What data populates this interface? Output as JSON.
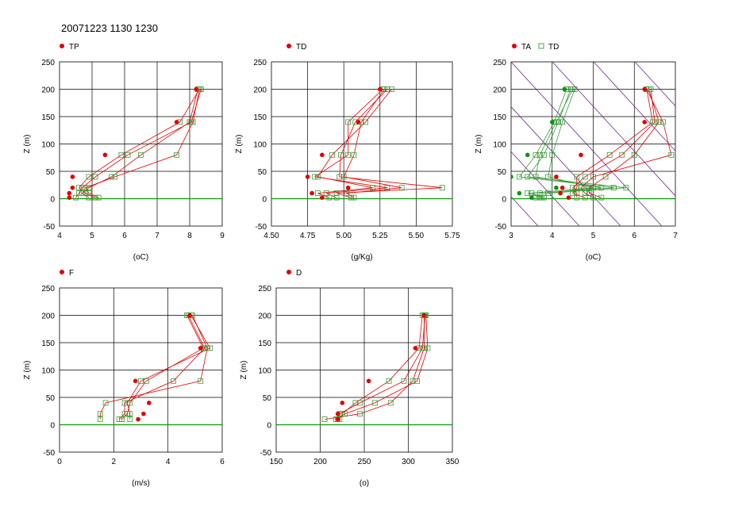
{
  "title": "20071223 1130 1230",
  "colors": {
    "obs": "#e00000",
    "model": "#3a9a3a",
    "zero": "#00a000",
    "diag": "#6a2a8a",
    "grid": "#000000"
  },
  "chart_data": [
    {
      "id": "tp",
      "type": "line",
      "legend": [
        {
          "label": "TP",
          "marker": "dot",
          "color": "#e00000"
        }
      ],
      "xlabel": "(oC)",
      "ylabel": "Z (m)",
      "xlim": [
        4,
        9
      ],
      "ylim": [
        -50,
        250
      ],
      "xticks": [
        "4",
        "5",
        "6",
        "7",
        "8",
        "9"
      ],
      "yticks": [
        "250",
        "200",
        "150",
        "100",
        "50",
        "0",
        "-50"
      ],
      "observed": {
        "z": [
          200,
          140,
          80,
          40,
          20,
          10,
          2
        ],
        "x": [
          8.2,
          7.6,
          5.4,
          4.4,
          4.4,
          4.3,
          4.3
        ]
      },
      "series": [
        {
          "z": [
            200,
            140,
            80,
            40,
            20,
            10,
            2
          ],
          "x": [
            8.3,
            7.7,
            5.9,
            4.9,
            4.6,
            4.8,
            5.1
          ]
        },
        {
          "z": [
            200,
            140,
            80,
            40,
            20,
            10,
            2
          ],
          "x": [
            8.25,
            8.0,
            6.5,
            5.6,
            4.9,
            4.7,
            4.9
          ]
        },
        {
          "z": [
            200,
            140,
            80,
            40,
            20,
            10,
            2
          ],
          "x": [
            8.3,
            8.1,
            7.6,
            5.7,
            4.8,
            4.9,
            5.2
          ]
        },
        {
          "z": [
            200,
            140,
            80,
            40,
            20,
            10,
            2
          ],
          "x": [
            8.35,
            8.05,
            6.1,
            5.1,
            4.7,
            4.6,
            4.5
          ]
        }
      ]
    },
    {
      "id": "td",
      "type": "line",
      "legend": [
        {
          "label": "TD",
          "marker": "dot",
          "color": "#e00000"
        }
      ],
      "xlabel": "(g/Kg)",
      "ylabel": "Z (m)",
      "xlim": [
        4.5,
        5.75
      ],
      "ylim": [
        -50,
        250
      ],
      "xticks": [
        "4.50",
        "4.75",
        "5.00",
        "5.25",
        "5.50",
        "5.75"
      ],
      "yticks": [
        "250",
        "200",
        "150",
        "100",
        "50",
        "0",
        "-50"
      ],
      "observed": {
        "z": [
          200,
          140,
          80,
          40,
          20,
          10,
          2
        ],
        "x": [
          5.25,
          5.1,
          4.85,
          4.75,
          5.03,
          4.78,
          4.85
        ]
      },
      "series": [
        {
          "z": [
            200,
            140,
            80,
            40,
            20,
            10,
            2
          ],
          "x": [
            5.27,
            5.03,
            5.03,
            4.8,
            5.3,
            4.88,
            4.95
          ]
        },
        {
          "z": [
            200,
            140,
            80,
            40,
            20,
            10,
            2
          ],
          "x": [
            5.3,
            5.08,
            4.98,
            4.97,
            5.68,
            4.95,
            5.05
          ]
        },
        {
          "z": [
            200,
            140,
            80,
            40,
            20,
            10,
            2
          ],
          "x": [
            5.33,
            5.15,
            4.92,
            4.82,
            5.2,
            4.82,
            4.9
          ]
        },
        {
          "z": [
            200,
            140,
            80,
            40,
            20,
            10,
            2
          ],
          "x": [
            5.28,
            5.12,
            5.07,
            5.0,
            5.4,
            5.02,
            5.07
          ]
        }
      ]
    },
    {
      "id": "ta_td",
      "type": "line",
      "legend": [
        {
          "label": "TA",
          "marker": "dot",
          "color": "#e00000"
        },
        {
          "label": "TD",
          "marker": "square",
          "color": "#3a9a3a"
        }
      ],
      "xlabel": "(oC)",
      "ylabel": "Z (m)",
      "xlim": [
        3,
        7
      ],
      "ylim": [
        -50,
        250
      ],
      "xticks": [
        "3",
        "4",
        "5",
        "6",
        "7"
      ],
      "yticks": [
        "250",
        "200",
        "150",
        "100",
        "50",
        "0",
        "-50"
      ],
      "diagonal_lines": true,
      "observed": {
        "z": [
          200,
          140,
          80,
          40,
          20,
          10,
          2
        ],
        "x": [
          6.25,
          6.25,
          4.7,
          4.1,
          4.25,
          4.2,
          4.4
        ]
      },
      "observed2": {
        "z": [
          200,
          140,
          80,
          40,
          20,
          10,
          2
        ],
        "x": [
          4.3,
          4.0,
          3.4,
          3.0,
          4.1,
          3.2,
          3.5
        ]
      },
      "series": [
        {
          "z": [
            200,
            140,
            80,
            40,
            20,
            10,
            2
          ],
          "x": [
            6.3,
            6.45,
            5.4,
            4.6,
            4.6,
            4.5,
            4.8
          ]
        },
        {
          "z": [
            200,
            140,
            80,
            40,
            20,
            10,
            2
          ],
          "x": [
            6.35,
            6.6,
            6.0,
            5.3,
            4.9,
            4.9,
            5.2
          ]
        },
        {
          "z": [
            200,
            140,
            80,
            40,
            20,
            10,
            2
          ],
          "x": [
            6.3,
            6.7,
            6.9,
            5.0,
            4.7,
            4.8,
            5.0
          ]
        },
        {
          "z": [
            200,
            140,
            80,
            40,
            20,
            10,
            2
          ],
          "x": [
            6.4,
            6.5,
            5.7,
            4.8,
            4.5,
            4.6,
            4.6
          ]
        }
      ],
      "series2": [
        {
          "z": [
            200,
            140,
            80,
            40,
            20,
            10,
            2
          ],
          "x": [
            4.35,
            4.05,
            3.6,
            3.2,
            5.5,
            3.7,
            3.6
          ]
        },
        {
          "z": [
            200,
            140,
            80,
            40,
            20,
            10,
            2
          ],
          "x": [
            4.45,
            4.15,
            3.8,
            3.4,
            5.8,
            3.9,
            3.7
          ]
        },
        {
          "z": [
            200,
            140,
            80,
            40,
            20,
            10,
            2
          ],
          "x": [
            4.55,
            4.25,
            4.0,
            3.9,
            5.0,
            3.5,
            3.8
          ]
        },
        {
          "z": [
            200,
            140,
            80,
            40,
            20,
            10,
            2
          ],
          "x": [
            4.5,
            4.1,
            3.7,
            3.6,
            5.2,
            3.4,
            3.75
          ]
        }
      ]
    },
    {
      "id": "f",
      "type": "line",
      "legend": [
        {
          "label": "F",
          "marker": "dot",
          "color": "#e00000"
        }
      ],
      "xlabel": "(m/s)",
      "ylabel": "Z (m)",
      "xlim": [
        0,
        6
      ],
      "ylim": [
        -50,
        250
      ],
      "xticks": [
        "0",
        "2",
        "4",
        "6"
      ],
      "yticks": [
        "250",
        "200",
        "150",
        "100",
        "50",
        "0",
        "-50"
      ],
      "observed": {
        "z": [
          200,
          140,
          80,
          40,
          20,
          10
        ],
        "x": [
          4.8,
          5.2,
          2.8,
          3.3,
          3.1,
          2.9
        ]
      },
      "series": [
        {
          "z": [
            200,
            140,
            80,
            40,
            20,
            10
          ],
          "x": [
            4.7,
            5.3,
            3.2,
            2.6,
            2.5,
            2.3
          ]
        },
        {
          "z": [
            200,
            140,
            80,
            40,
            20,
            10
          ],
          "x": [
            4.9,
            5.45,
            5.2,
            1.7,
            1.5,
            1.5
          ]
        },
        {
          "z": [
            200,
            140,
            80,
            40,
            20,
            10
          ],
          "x": [
            4.85,
            5.55,
            3.0,
            2.5,
            2.6,
            2.6
          ]
        },
        {
          "z": [
            200,
            140,
            80,
            40,
            20,
            10
          ],
          "x": [
            4.75,
            5.35,
            4.2,
            2.4,
            2.4,
            2.2
          ]
        }
      ]
    },
    {
      "id": "d",
      "type": "line",
      "legend": [
        {
          "label": "D",
          "marker": "dot",
          "color": "#e00000"
        }
      ],
      "xlabel": "(o)",
      "ylabel": "Z (m)",
      "xlim": [
        150,
        350
      ],
      "ylim": [
        -50,
        250
      ],
      "xticks": [
        "150",
        "200",
        "250",
        "300",
        "350"
      ],
      "yticks": [
        "250",
        "200",
        "150",
        "100",
        "50",
        "0",
        "-50"
      ],
      "observed": {
        "z": [
          200,
          140,
          80,
          40,
          20,
          10
        ],
        "x": [
          318,
          308,
          255,
          225,
          220,
          220
        ]
      },
      "series": [
        {
          "z": [
            200,
            140,
            80,
            40,
            20,
            10
          ],
          "x": [
            316,
            312,
            278,
            240,
            225,
            222
          ]
        },
        {
          "z": [
            200,
            140,
            80,
            40,
            20,
            10
          ],
          "x": [
            318,
            318,
            305,
            280,
            245,
            205
          ]
        },
        {
          "z": [
            200,
            140,
            80,
            40,
            20,
            10
          ],
          "x": [
            320,
            322,
            310,
            262,
            228,
            218
          ]
        },
        {
          "z": [
            200,
            140,
            80,
            40,
            20,
            10
          ],
          "x": [
            319,
            316,
            295,
            245,
            222,
            220
          ]
        }
      ]
    }
  ]
}
